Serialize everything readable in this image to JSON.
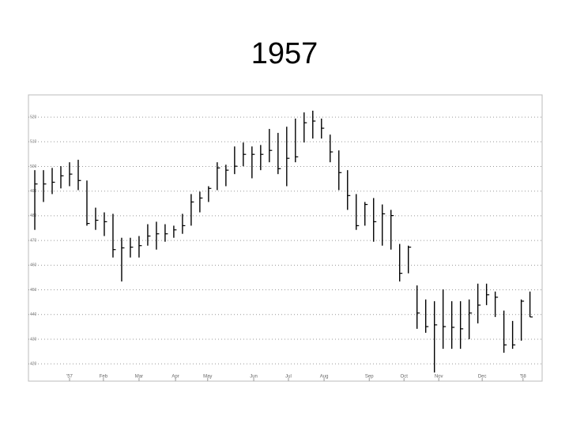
{
  "chart_data": {
    "type": "ohlc",
    "title": "1957",
    "series": [
      {
        "color": "#000000",
        "high": [
          498.5,
          498.5,
          499.4,
          500.1,
          501.7,
          502.7,
          494.3,
          483.3,
          481.4,
          480.8,
          471.1,
          471.1,
          471.8,
          476.6,
          477.6,
          476.6,
          476.0,
          480.8,
          488.8,
          489.8,
          492.0,
          501.7,
          500.7,
          508.1,
          509.7,
          508.1,
          508.7,
          515.2,
          513.6,
          516.1,
          519.4,
          521.9,
          522.6,
          519.4,
          512.9,
          506.5,
          498.5,
          488.8,
          485.6,
          487.2,
          484.6,
          482.4,
          468.6,
          467.9,
          451.8,
          446.1,
          445.4,
          450.2,
          445.4,
          445.4,
          446.1,
          452.5,
          452.5,
          449.3,
          441.6,
          437.4,
          446.1,
          449.3
        ],
        "low": [
          474.3,
          485.6,
          488.8,
          491.1,
          492.0,
          490.4,
          476.0,
          474.3,
          471.8,
          463.1,
          453.4,
          463.1,
          463.1,
          467.9,
          466.3,
          469.5,
          471.1,
          472.7,
          476.0,
          481.4,
          485.6,
          490.4,
          492.0,
          496.9,
          500.1,
          495.2,
          498.5,
          501.7,
          496.9,
          492.0,
          501.7,
          509.7,
          511.3,
          511.3,
          501.7,
          490.4,
          482.4,
          474.3,
          476.0,
          469.5,
          467.9,
          466.3,
          453.4,
          456.7,
          434.2,
          432.6,
          416.5,
          426.1,
          426.1,
          426.1,
          430.0,
          436.4,
          443.8,
          439.0,
          424.5,
          426.1,
          429.4,
          439.0
        ],
        "close": [
          492.9,
          492.9,
          493.6,
          496.2,
          496.9,
          494.3,
          476.9,
          478.2,
          477.6,
          466.3,
          467.0,
          467.3,
          467.9,
          471.8,
          472.7,
          472.7,
          474.3,
          476.0,
          485.6,
          487.2,
          491.1,
          499.4,
          498.5,
          500.1,
          504.9,
          504.9,
          504.9,
          506.5,
          499.1,
          503.3,
          503.9,
          517.7,
          518.4,
          515.5,
          505.9,
          497.5,
          488.2,
          476.0,
          484.6,
          477.6,
          480.8,
          480.1,
          456.7,
          467.3,
          440.6,
          435.1,
          435.8,
          435.1,
          434.8,
          434.2,
          440.6,
          443.8,
          448.0,
          447.0,
          427.7,
          427.7,
          445.4,
          439.0
        ]
      }
    ],
    "xlim": [
      -0.73,
      58.4
    ],
    "xticks": [
      {
        "value": 4,
        "label": "'57"
      },
      {
        "value": 7.9,
        "label": "Feb"
      },
      {
        "value": 12,
        "label": "Mar"
      },
      {
        "value": 16.2,
        "label": "Apr"
      },
      {
        "value": 19.9,
        "label": "May"
      },
      {
        "value": 25.2,
        "label": "Jun"
      },
      {
        "value": 29.2,
        "label": "Jul"
      },
      {
        "value": 33.3,
        "label": "Aug"
      },
      {
        "value": 38.5,
        "label": "Sep"
      },
      {
        "value": 42.5,
        "label": "Oct"
      },
      {
        "value": 46.5,
        "label": "Nov"
      },
      {
        "value": 51.5,
        "label": "Dec"
      },
      {
        "value": 56.2,
        "label": "'58"
      }
    ],
    "ylim": [
      413,
      529
    ],
    "yticks": [
      420,
      430,
      440,
      450,
      460,
      470,
      480,
      490,
      500,
      510,
      520
    ],
    "grid": true
  }
}
